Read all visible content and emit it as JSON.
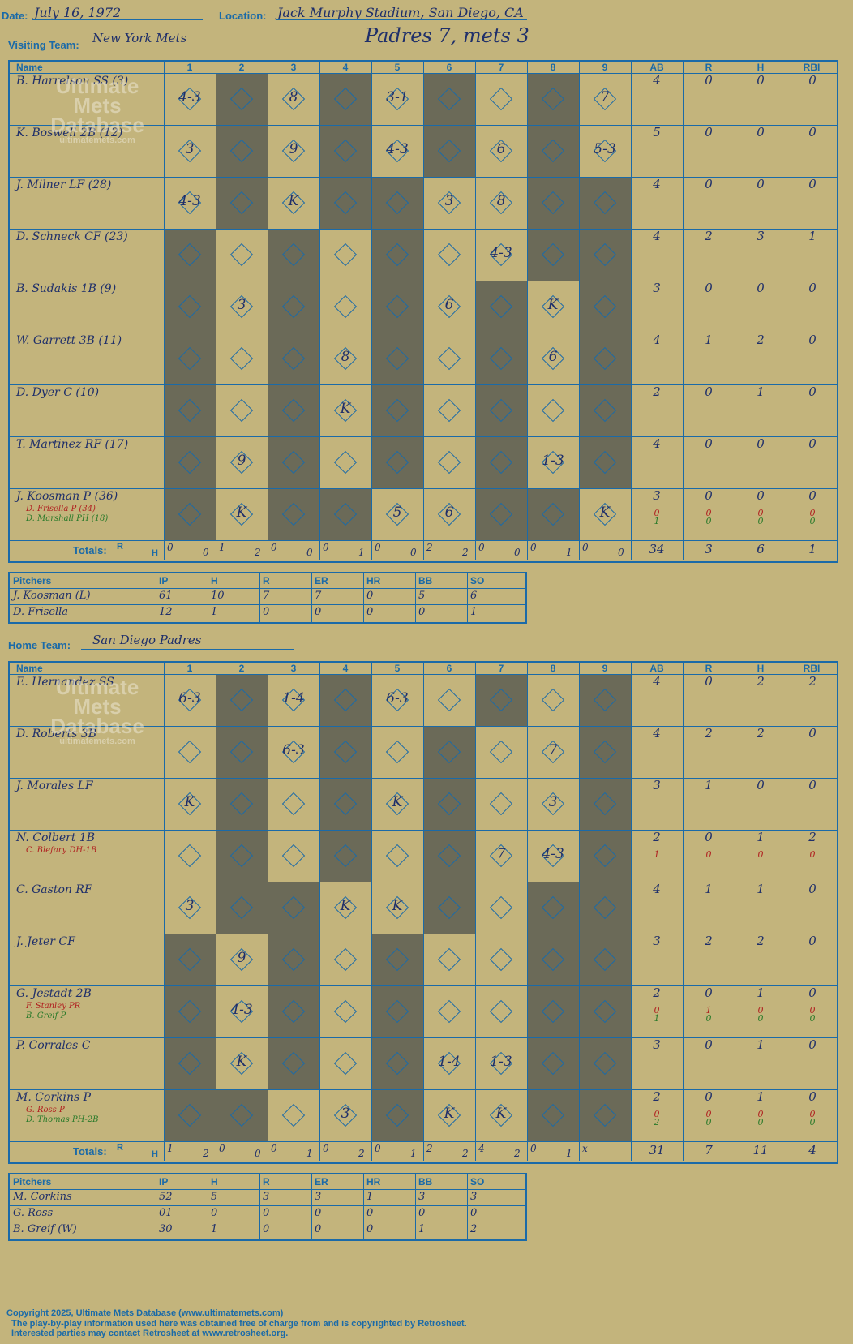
{
  "header": {
    "date_label": "Date:",
    "date": "July 16, 1972",
    "location_label": "Location:",
    "location": "Jack Murphy Stadium, San Diego, CA",
    "visiting_label": "Visiting Team:",
    "visiting_team": "New York Mets",
    "home_label": "Home Team:",
    "home_team": "San Diego Padres",
    "result": "Padres 7, mets 3"
  },
  "columns": [
    "Name",
    "1",
    "2",
    "3",
    "4",
    "5",
    "6",
    "7",
    "8",
    "9",
    "AB",
    "R",
    "H",
    "RBI"
  ],
  "watermark": {
    "line1": "Ultimate",
    "line2": "Mets",
    "line3": "Database",
    "line4": "ultimatemets.com"
  },
  "totals_label": "Totals:",
  "rh_label": {
    "r": "R",
    "h": "H"
  },
  "visitors": {
    "players": [
      {
        "name": "B. Harrelson SS (3)",
        "subs": [],
        "ab": [
          "4"
        ],
        "r": [
          "0"
        ],
        "h": [
          "0"
        ],
        "rbi": [
          "0"
        ]
      },
      {
        "name": "K. Boswell 2B (12)",
        "subs": [],
        "ab": [
          "5"
        ],
        "r": [
          "0"
        ],
        "h": [
          "0"
        ],
        "rbi": [
          "0"
        ]
      },
      {
        "name": "J. Milner LF (28)",
        "subs": [],
        "ab": [
          "4"
        ],
        "r": [
          "0"
        ],
        "h": [
          "0"
        ],
        "rbi": [
          "0"
        ]
      },
      {
        "name": "D. Schneck CF (23)",
        "subs": [],
        "ab": [
          "4"
        ],
        "r": [
          "2"
        ],
        "h": [
          "3"
        ],
        "rbi": [
          "1"
        ]
      },
      {
        "name": "B. Sudakis 1B (9)",
        "subs": [],
        "ab": [
          "3"
        ],
        "r": [
          "0"
        ],
        "h": [
          "0"
        ],
        "rbi": [
          "0"
        ]
      },
      {
        "name": "W. Garrett 3B (11)",
        "subs": [],
        "ab": [
          "4"
        ],
        "r": [
          "1"
        ],
        "h": [
          "2"
        ],
        "rbi": [
          "0"
        ]
      },
      {
        "name": "D. Dyer C (10)",
        "subs": [],
        "ab": [
          "2"
        ],
        "r": [
          "0"
        ],
        "h": [
          "1"
        ],
        "rbi": [
          "0"
        ]
      },
      {
        "name": "T. Martinez RF (17)",
        "subs": [],
        "ab": [
          "4"
        ],
        "r": [
          "0"
        ],
        "h": [
          "0"
        ],
        "rbi": [
          "0"
        ]
      },
      {
        "name": "J. Koosman P (36)",
        "subs": [
          {
            "name": "D. Frisella P (34)",
            "color": "#b02020"
          },
          {
            "name": "D. Marshall PH (18)",
            "color": "#2a7a2a"
          }
        ],
        "ab": [
          "3",
          "0",
          "1"
        ],
        "r": [
          "0",
          "0",
          "0"
        ],
        "h": [
          "0",
          "0",
          "0"
        ],
        "rbi": [
          "0",
          "0",
          "0"
        ]
      }
    ],
    "plays": [
      [
        "4-3",
        "",
        "8",
        "",
        "3-1",
        "",
        "",
        "",
        "7"
      ],
      [
        "3",
        "",
        "9",
        "",
        "4-3",
        "",
        "6",
        "",
        "5-3"
      ],
      [
        "4-3",
        "",
        "K",
        "",
        "",
        "3",
        "8",
        "",
        ""
      ],
      [
        "",
        "",
        "",
        "",
        "",
        "",
        "4-3",
        "",
        ""
      ],
      [
        "",
        "3",
        "",
        "",
        "",
        "6",
        "",
        "K",
        ""
      ],
      [
        "",
        "",
        "",
        "8",
        "",
        "",
        "",
        "6",
        ""
      ],
      [
        "",
        "",
        "",
        "K",
        "",
        "",
        "",
        "",
        ""
      ],
      [
        "",
        "9",
        "",
        "",
        "",
        "",
        "",
        "1-3",
        ""
      ],
      [
        "",
        "K",
        "",
        "",
        "5",
        "6",
        "",
        "",
        "K"
      ]
    ],
    "totals": {
      "innings": [
        [
          "0",
          "0"
        ],
        [
          "1",
          "2"
        ],
        [
          "0",
          "0"
        ],
        [
          "0",
          "1"
        ],
        [
          "0",
          "0"
        ],
        [
          "2",
          "2"
        ],
        [
          "0",
          "0"
        ],
        [
          "0",
          "1"
        ],
        [
          "0",
          "0"
        ]
      ],
      "ab": "34",
      "r": "3",
      "h": "6",
      "rbi": "1"
    },
    "pitching": {
      "headers": [
        "Pitchers",
        "IP",
        "H",
        "R",
        "ER",
        "HR",
        "BB",
        "SO"
      ],
      "rows": [
        [
          "J. Koosman (L)",
          "61",
          "10",
          "7",
          "7",
          "0",
          "5",
          "6"
        ],
        [
          "D. Frisella",
          "12",
          "1",
          "0",
          "0",
          "0",
          "0",
          "1"
        ]
      ]
    }
  },
  "home": {
    "players": [
      {
        "name": "E. Hernandez SS",
        "subs": [],
        "ab": [
          "4"
        ],
        "r": [
          "0"
        ],
        "h": [
          "2"
        ],
        "rbi": [
          "2"
        ]
      },
      {
        "name": "D. Roberts 3B",
        "subs": [],
        "ab": [
          "4"
        ],
        "r": [
          "2"
        ],
        "h": [
          "2"
        ],
        "rbi": [
          "0"
        ]
      },
      {
        "name": "J. Morales LF",
        "subs": [],
        "ab": [
          "3"
        ],
        "r": [
          "1"
        ],
        "h": [
          "0"
        ],
        "rbi": [
          "0"
        ]
      },
      {
        "name": "N. Colbert 1B",
        "subs": [
          {
            "name": "C. Blefary DH-1B",
            "color": "#b02020"
          }
        ],
        "ab": [
          "2",
          "1"
        ],
        "r": [
          "0",
          "0"
        ],
        "h": [
          "1",
          "0"
        ],
        "rbi": [
          "2",
          "0"
        ]
      },
      {
        "name": "C. Gaston RF",
        "subs": [],
        "ab": [
          "4"
        ],
        "r": [
          "1"
        ],
        "h": [
          "1"
        ],
        "rbi": [
          "0"
        ]
      },
      {
        "name": "J. Jeter CF",
        "subs": [],
        "ab": [
          "3"
        ],
        "r": [
          "2"
        ],
        "h": [
          "2"
        ],
        "rbi": [
          "0"
        ]
      },
      {
        "name": "G. Jestadt 2B",
        "subs": [
          {
            "name": "F. Stanley PR",
            "color": "#b02020"
          },
          {
            "name": "B. Greif P",
            "color": "#2a7a2a"
          }
        ],
        "ab": [
          "2",
          "0",
          "1"
        ],
        "r": [
          "0",
          "1",
          "0"
        ],
        "h": [
          "1",
          "0",
          "0"
        ],
        "rbi": [
          "0",
          "0",
          "0"
        ]
      },
      {
        "name": "P. Corrales C",
        "subs": [],
        "ab": [
          "3"
        ],
        "r": [
          "0"
        ],
        "h": [
          "1"
        ],
        "rbi": [
          "0"
        ]
      },
      {
        "name": "M. Corkins P",
        "subs": [
          {
            "name": "G. Ross P",
            "color": "#b02020"
          },
          {
            "name": "D. Thomas PH-2B",
            "color": "#2a7a2a"
          }
        ],
        "ab": [
          "2",
          "0",
          "2"
        ],
        "r": [
          "0",
          "0",
          "0"
        ],
        "h": [
          "1",
          "0",
          "0"
        ],
        "rbi": [
          "0",
          "0",
          "0"
        ]
      }
    ],
    "plays": [
      [
        "6-3",
        "",
        "1-4",
        "",
        "6-3",
        "",
        "",
        "",
        ""
      ],
      [
        "",
        "",
        "6-3",
        "",
        "",
        "",
        "",
        "7",
        ""
      ],
      [
        "K",
        "",
        "",
        "",
        "K",
        "",
        "",
        "3",
        ""
      ],
      [
        "",
        "",
        "",
        "",
        "",
        "",
        "7",
        "4-3",
        ""
      ],
      [
        "3",
        "",
        "",
        "K",
        "K",
        "",
        "",
        "",
        ""
      ],
      [
        "",
        "9",
        "",
        "",
        "",
        "",
        "",
        "",
        ""
      ],
      [
        "",
        "4-3",
        "",
        "",
        "",
        "",
        "",
        "",
        ""
      ],
      [
        "",
        "K",
        "",
        "",
        "",
        "1-4",
        "1-3",
        "",
        ""
      ],
      [
        "",
        "",
        "",
        "3",
        "",
        "K",
        "K",
        "",
        ""
      ]
    ],
    "totals": {
      "innings": [
        [
          "1",
          "2"
        ],
        [
          "0",
          "0"
        ],
        [
          "0",
          "1"
        ],
        [
          "0",
          "2"
        ],
        [
          "0",
          "1"
        ],
        [
          "2",
          "2"
        ],
        [
          "4",
          "2"
        ],
        [
          "0",
          "1"
        ],
        [
          "x",
          ""
        ]
      ],
      "ab": "31",
      "r": "7",
      "h": "11",
      "rbi": "4"
    },
    "pitching": {
      "headers": [
        "Pitchers",
        "IP",
        "H",
        "R",
        "ER",
        "HR",
        "BB",
        "SO"
      ],
      "rows": [
        [
          "M. Corkins",
          "52",
          "5",
          "3",
          "3",
          "1",
          "3",
          "3"
        ],
        [
          "G. Ross",
          "01",
          "0",
          "0",
          "0",
          "0",
          "0",
          "0"
        ],
        [
          "B. Greif (W)",
          "30",
          "1",
          "0",
          "0",
          "0",
          "1",
          "2"
        ]
      ]
    }
  },
  "footer": {
    "copyright": "Copyright 2025, Ultimate Mets Database (www.ultimatemets.com)",
    "line2": "The play-by-play information used here was obtained free of charge from and is copyrighted by Retrosheet.",
    "line3": "Interested parties may contact Retrosheet at www.retrosheet.org."
  }
}
